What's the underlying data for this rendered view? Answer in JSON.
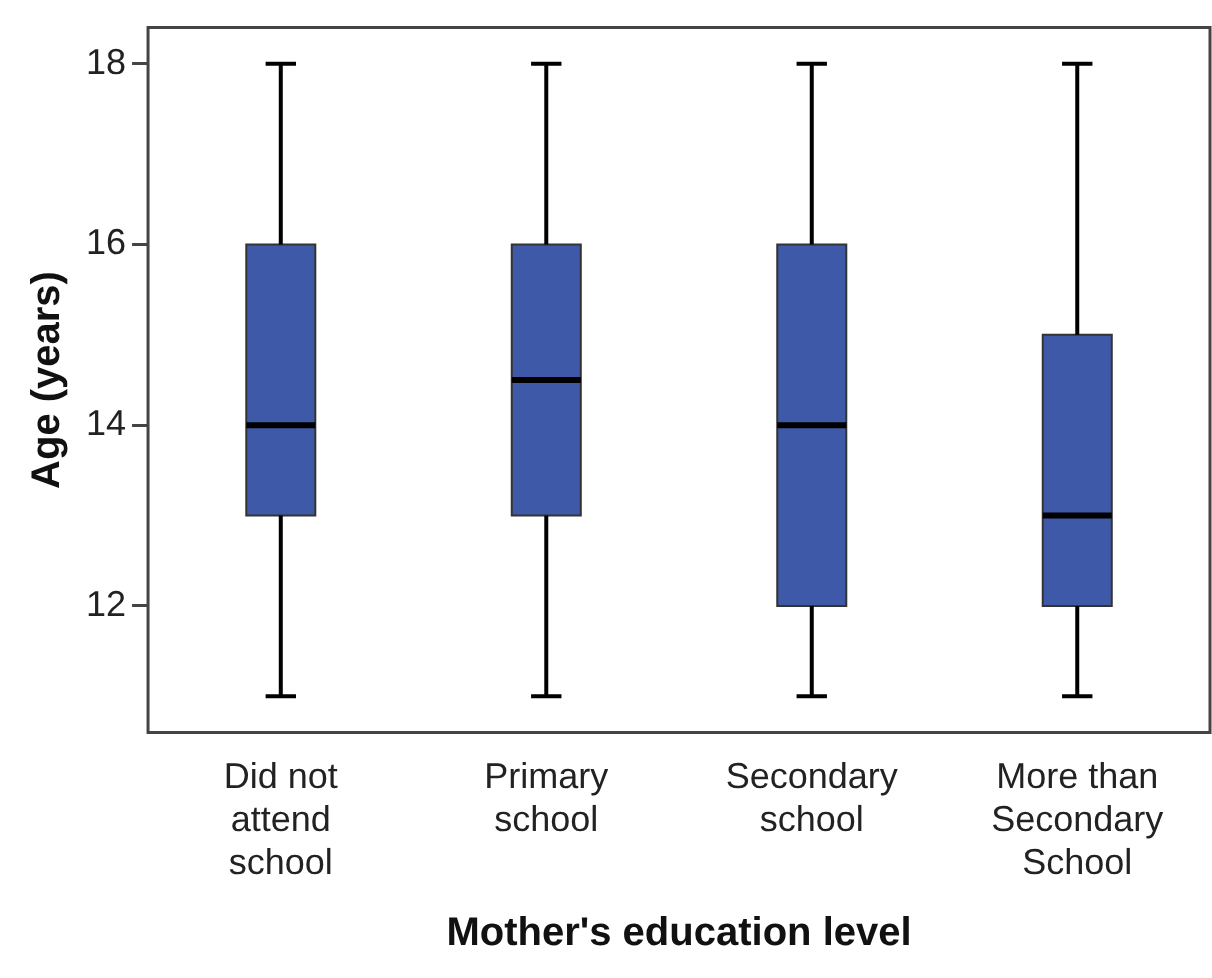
{
  "chart_data": {
    "type": "box",
    "xlabel": "Mother's education level",
    "ylabel": "Age (years)",
    "categories": [
      "Did not attend school",
      "Primary school",
      "Secondary school",
      "More than Secondary School"
    ],
    "series": [
      {
        "color": "#3f59a9",
        "boxes": [
          {
            "low": 11,
            "q1": 13,
            "median": 14,
            "q3": 16,
            "high": 18
          },
          {
            "low": 11,
            "q1": 13,
            "median": 14.5,
            "q3": 16,
            "high": 18
          },
          {
            "low": 11,
            "q1": 12,
            "median": 14,
            "q3": 16,
            "high": 18
          },
          {
            "low": 11,
            "q1": 12,
            "median": 13,
            "q3": 15,
            "high": 18
          }
        ]
      }
    ],
    "ylim": [
      10.6,
      18.4
    ],
    "yticks": [
      12,
      14,
      16,
      18
    ],
    "grid": false,
    "legend": false
  }
}
